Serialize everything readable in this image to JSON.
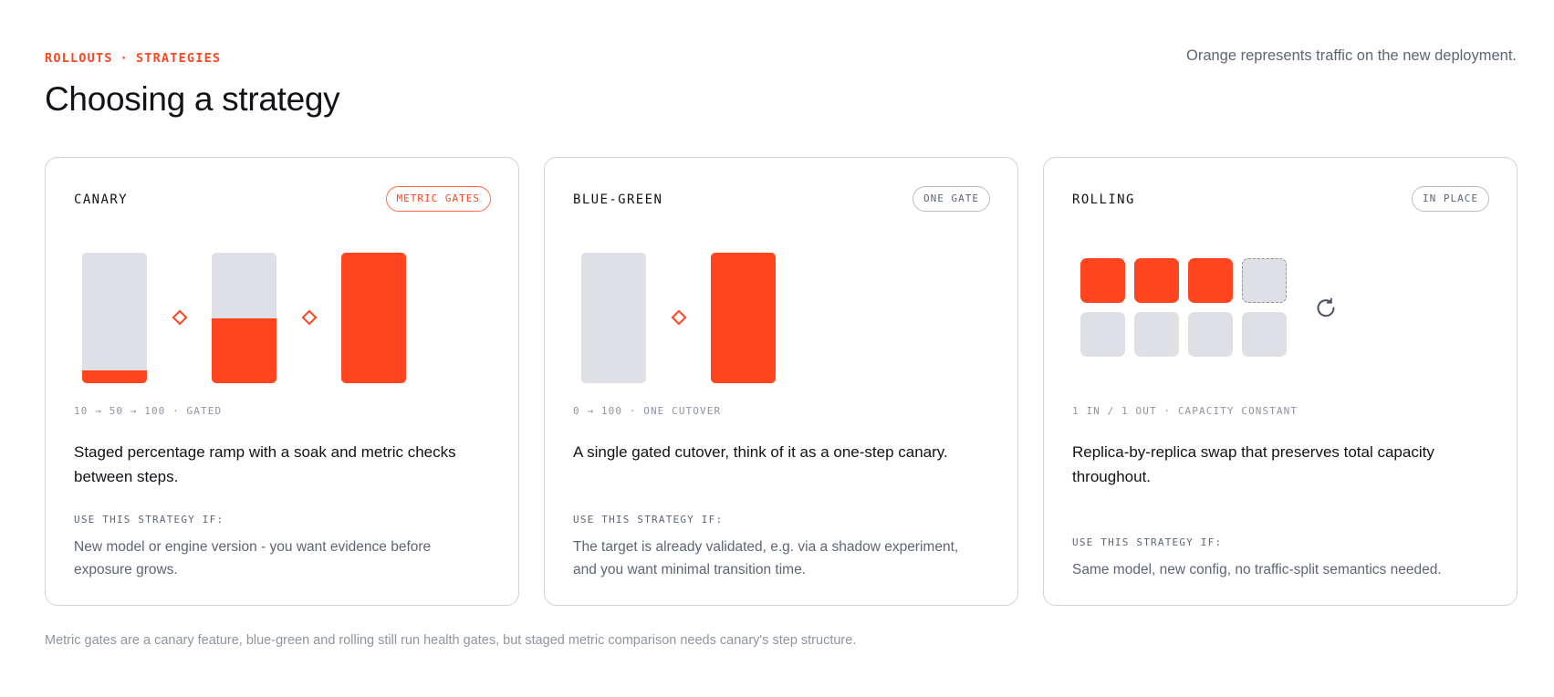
{
  "header": {
    "eyebrow_section": "ROLLOUTS",
    "eyebrow_separator": "·",
    "eyebrow_page": "STRATEGIES",
    "title": "Choosing a strategy",
    "legend_note": "Orange represents traffic on the new deployment."
  },
  "colors": {
    "accent": "#ff4520",
    "inactive": "#dfe0e5",
    "muted_text": "#5e6577",
    "border": "#cfd2d9"
  },
  "cards": [
    {
      "name": "CANARY",
      "badge": "METRIC GATES",
      "badge_accent": true,
      "steps_new_traffic_fraction": [
        0.1,
        0.5,
        1.0
      ],
      "gates_between_steps": 2,
      "caption": "10 → 50 → 100 · GATED",
      "description": "Staged percentage ramp with a soak and metric checks between steps.",
      "use_label": "USE THIS STRATEGY IF:",
      "use_text": "New model or engine version - you want evidence before exposure grows."
    },
    {
      "name": "BLUE-GREEN",
      "badge": "ONE GATE",
      "badge_accent": false,
      "steps_new_traffic_fraction": [
        0.0,
        1.0
      ],
      "gates_between_steps": 1,
      "caption": "0 → 100 · ONE CUTOVER",
      "description": "A single gated cutover, think of it as a one-step canary.",
      "use_label": "USE THIS STRATEGY IF:",
      "use_text": "The target is already validated, e.g. via a shadow experiment, and you want minimal transition time."
    },
    {
      "name": "ROLLING",
      "badge": "IN PLACE",
      "badge_accent": false,
      "replicas": [
        "new",
        "new",
        "new",
        "pending",
        "old",
        "old",
        "old",
        "old"
      ],
      "cycle_icon": "refresh-icon",
      "caption": "1 IN / 1 OUT · CAPACITY CONSTANT",
      "description": "Replica-by-replica swap that preserves total capacity throughout.",
      "use_label": "USE THIS STRATEGY IF:",
      "use_text": "Same model, new config, no traffic-split semantics needed."
    }
  ],
  "footnote": "Metric gates are a canary feature, blue-green and rolling still run health gates, but staged metric comparison needs canary's step structure."
}
